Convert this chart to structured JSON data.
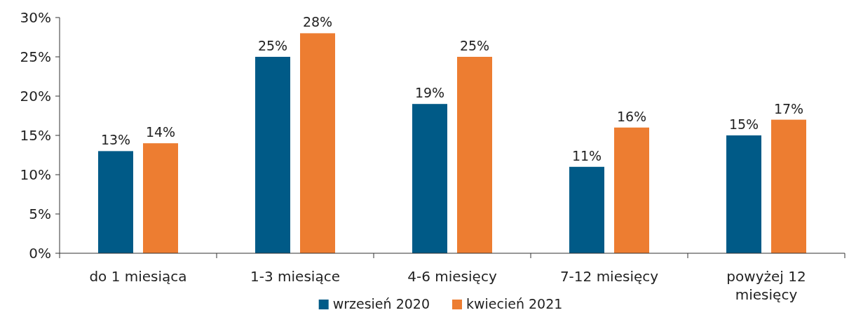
{
  "chart_data": {
    "type": "bar",
    "categories": [
      "do 1 miesiąca",
      "1-3 miesiące",
      "4-6 miesięcy",
      "7-12 miesięcy",
      "powyżej 12 miesięcy"
    ],
    "series": [
      {
        "name": "wrzesień 2020",
        "color": "#005a87",
        "values": [
          13,
          25,
          19,
          11,
          15
        ],
        "value_labels": [
          "13%",
          "25%",
          "19%",
          "11%",
          "15%"
        ]
      },
      {
        "name": "kwiecień 2021",
        "color": "#ed7d31",
        "values": [
          14,
          28,
          25,
          16,
          17
        ],
        "value_labels": [
          "14%",
          "28%",
          "25%",
          "16%",
          "17%"
        ]
      }
    ],
    "ylim": [
      0,
      30
    ],
    "yticks": [
      {
        "value": 0,
        "label": "0%"
      },
      {
        "value": 5,
        "label": "5%"
      },
      {
        "value": 10,
        "label": "10%"
      },
      {
        "value": 15,
        "label": "15%"
      },
      {
        "value": 20,
        "label": "20%"
      },
      {
        "value": 25,
        "label": "25%"
      },
      {
        "value": 30,
        "label": "30%"
      }
    ],
    "grid": false,
    "legend": "bottom"
  }
}
